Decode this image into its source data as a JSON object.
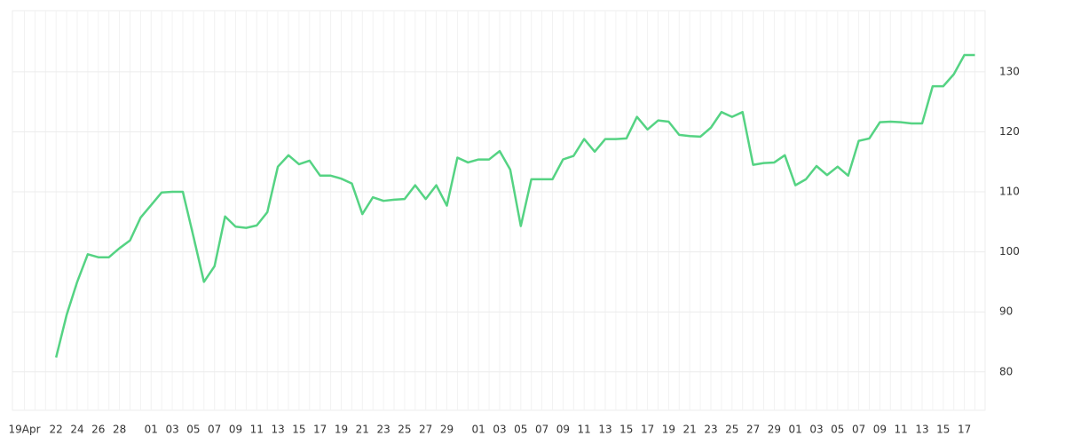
{
  "chart_data": {
    "type": "line",
    "categories": [
      "19Apr",
      null,
      null,
      "22",
      null,
      "24",
      null,
      "26",
      null,
      "28",
      null,
      null,
      "01",
      null,
      "03",
      null,
      "05",
      null,
      "07",
      null,
      "09",
      null,
      "11",
      null,
      "13",
      null,
      "15",
      null,
      "17",
      null,
      "19",
      null,
      "21",
      null,
      "23",
      null,
      "25",
      null,
      "27",
      null,
      "29",
      null,
      null,
      "01",
      null,
      "03",
      null,
      "05",
      null,
      "07",
      null,
      "09",
      null,
      "11",
      null,
      "13",
      null,
      "15",
      null,
      "17",
      null,
      "19",
      null,
      "21",
      null,
      "23",
      null,
      "25",
      null,
      "27",
      null,
      "29",
      null,
      "01",
      null,
      "03",
      null,
      "05",
      null,
      "07",
      null,
      "09",
      null,
      "11",
      null,
      "13",
      null,
      "15",
      null,
      "17",
      null
    ],
    "series": [
      {
        "color": "#55d383",
        "values": [
          null,
          null,
          null,
          82.4,
          89.5,
          95,
          99.6,
          99.1,
          99.1,
          100.6,
          101.9,
          105.7,
          107.8,
          109.9,
          110,
          110,
          102.6,
          95,
          97.6,
          105.9,
          104.2,
          104,
          104.4,
          106.6,
          114.2,
          116.1,
          114.6,
          115.2,
          112.7,
          112.7,
          112.2,
          111.4,
          106.3,
          109.1,
          108.5,
          108.7,
          108.8,
          111.1,
          108.8,
          111.1,
          107.7,
          115.7,
          114.9,
          115.4,
          115.4,
          116.8,
          113.7,
          104.3,
          112.1,
          112.1,
          112.1,
          115.4,
          116,
          118.8,
          116.7,
          118.8,
          118.8,
          118.9,
          122.5,
          120.4,
          121.9,
          121.7,
          119.5,
          119.3,
          119.2,
          120.7,
          123.3,
          122.5,
          123.3,
          114.5,
          114.8,
          114.9,
          116.1,
          111.1,
          112.1,
          114.3,
          112.8,
          114.2,
          112.7,
          118.5,
          118.9,
          121.6,
          121.7,
          121.6,
          121.4,
          121.4,
          127.6,
          127.6,
          129.6,
          132.8,
          132.8
        ]
      }
    ],
    "ylim": [
      73.6,
      140.2
    ],
    "yticks": [
      80,
      90,
      100,
      110,
      120,
      130
    ],
    "grid": true
  }
}
